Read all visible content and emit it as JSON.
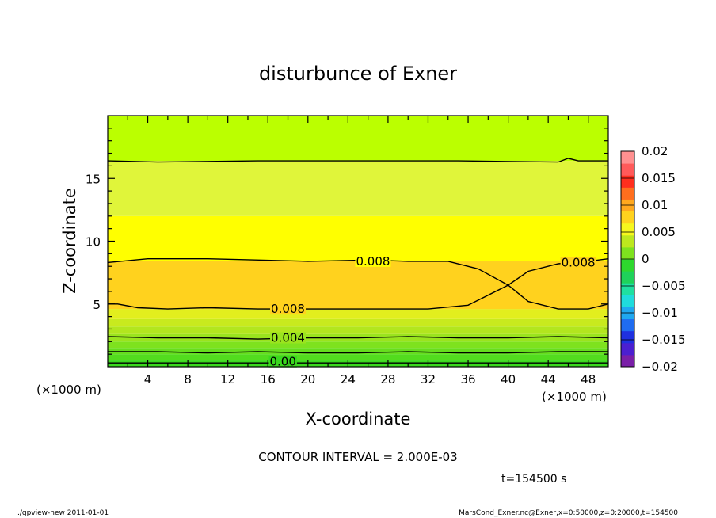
{
  "chart_data": {
    "type": "heatmap",
    "title": "disturbunce of Exner",
    "xlabel": "X-coordinate",
    "ylabel": "Z-coordinate",
    "xunits_left": "(×1000 m)",
    "xunits_right": "(×1000 m)",
    "xlim": [
      0,
      50
    ],
    "ylim": [
      0,
      20
    ],
    "xticks": [
      4,
      8,
      12,
      16,
      20,
      24,
      28,
      32,
      36,
      40,
      44,
      48
    ],
    "yticks": [
      5,
      10,
      15
    ],
    "colorbar": {
      "range": [
        -0.02,
        0.02
      ],
      "tick_values": [
        0.02,
        0.015,
        0.01,
        0.005,
        0,
        -0.005,
        -0.01,
        -0.015,
        -0.02
      ],
      "tick_labels": [
        "0.02",
        "0.015",
        "0.01",
        "0.005",
        "0",
        "−0.005",
        "−0.01",
        "−0.015",
        "−0.02"
      ],
      "colors": [
        "#7a1fa8",
        "#4b1fd0",
        "#1f30e0",
        "#1f6cf0",
        "#1fa8f0",
        "#1fdcdc",
        "#1fe0a0",
        "#1fd25a",
        "#2ed82e",
        "#7ee21e",
        "#bde81e",
        "#f7f71e",
        "#ffd21e",
        "#ffa81e",
        "#ff6e1e",
        "#ff2e1e",
        "#ff5a5a",
        "#ff9090"
      ]
    },
    "contour_interval": "CONTOUR INTERVAL = 2.000E-03",
    "contour_labels": [
      {
        "text": "0.008",
        "x": 26.5,
        "z": 8.4
      },
      {
        "text": "0.008",
        "x": 47.0,
        "z": 8.3
      },
      {
        "text": "0.008",
        "x": 18.0,
        "z": 4.6
      },
      {
        "text": "0.004",
        "x": 18.0,
        "z": 2.3
      },
      {
        "text": "0.00",
        "x": 17.5,
        "z": 0.4
      }
    ],
    "time_label": "t=154500 s",
    "bands": [
      {
        "z0": 0.0,
        "z1": 0.5,
        "color": "#3ad81e"
      },
      {
        "z0": 0.5,
        "z1": 1.0,
        "color": "#52dc1e"
      },
      {
        "z0": 1.0,
        "z1": 1.5,
        "color": "#66de1e"
      },
      {
        "z0": 1.5,
        "z1": 2.0,
        "color": "#7ee21e"
      },
      {
        "z0": 2.0,
        "z1": 2.6,
        "color": "#9ae41e"
      },
      {
        "z0": 2.6,
        "z1": 3.2,
        "color": "#b2e61e"
      },
      {
        "z0": 3.2,
        "z1": 3.8,
        "color": "#c8ea1e"
      },
      {
        "z0": 3.8,
        "z1": 4.6,
        "color": "#e2ee1e"
      },
      {
        "z0": 4.6,
        "z1": 8.4,
        "color": "#ffd21e"
      },
      {
        "z0": 8.4,
        "z1": 12.0,
        "color": "#ffff00"
      },
      {
        "z0": 12.0,
        "z1": 16.4,
        "color": "#e0f53a"
      },
      {
        "z0": 16.4,
        "z1": 20.0,
        "color": "#bbff00"
      }
    ],
    "contours": [
      {
        "name": "top",
        "points": [
          [
            0,
            16.4
          ],
          [
            5,
            16.3
          ],
          [
            15,
            16.4
          ],
          [
            25,
            16.4
          ],
          [
            35,
            16.4
          ],
          [
            45,
            16.3
          ],
          [
            46,
            16.6
          ],
          [
            47,
            16.4
          ],
          [
            50,
            16.4
          ]
        ]
      },
      {
        "name": "upper-0.008",
        "points": [
          [
            0,
            8.3
          ],
          [
            4,
            8.6
          ],
          [
            10,
            8.6
          ],
          [
            20,
            8.4
          ],
          [
            26,
            8.5
          ],
          [
            30,
            8.4
          ],
          [
            34,
            8.4
          ],
          [
            37,
            7.8
          ],
          [
            40,
            6.5
          ],
          [
            42,
            7.6
          ],
          [
            45,
            8.2
          ],
          [
            48,
            8.4
          ],
          [
            50,
            8.6
          ]
        ]
      },
      {
        "name": "lower-0.008",
        "points": [
          [
            0,
            5.0
          ],
          [
            1,
            5.0
          ],
          [
            3,
            4.7
          ],
          [
            6,
            4.6
          ],
          [
            10,
            4.7
          ],
          [
            15,
            4.6
          ],
          [
            20,
            4.6
          ],
          [
            26,
            4.6
          ],
          [
            32,
            4.6
          ],
          [
            36,
            4.9
          ],
          [
            40,
            6.5
          ],
          [
            42,
            5.2
          ],
          [
            45,
            4.6
          ],
          [
            48,
            4.6
          ],
          [
            50,
            5.0
          ]
        ]
      },
      {
        "name": "0.004",
        "points": [
          [
            0,
            2.4
          ],
          [
            5,
            2.3
          ],
          [
            10,
            2.3
          ],
          [
            15,
            2.2
          ],
          [
            20,
            2.3
          ],
          [
            25,
            2.3
          ],
          [
            30,
            2.4
          ],
          [
            35,
            2.3
          ],
          [
            40,
            2.3
          ],
          [
            45,
            2.4
          ],
          [
            50,
            2.3
          ]
        ]
      },
      {
        "name": "0.002",
        "points": [
          [
            0,
            1.2
          ],
          [
            5,
            1.2
          ],
          [
            10,
            1.1
          ],
          [
            15,
            1.2
          ],
          [
            20,
            1.1
          ],
          [
            25,
            1.1
          ],
          [
            30,
            1.2
          ],
          [
            35,
            1.1
          ],
          [
            40,
            1.1
          ],
          [
            45,
            1.2
          ],
          [
            50,
            1.2
          ]
        ]
      },
      {
        "name": "0.000",
        "points": [
          [
            0,
            0.3
          ],
          [
            10,
            0.3
          ],
          [
            20,
            0.3
          ],
          [
            30,
            0.3
          ],
          [
            40,
            0.3
          ],
          [
            50,
            0.3
          ]
        ]
      }
    ]
  },
  "footer": {
    "left": "./gpview-new   2011-01-01",
    "right": "MarsCond_Exner.nc@Exner,x=0:50000,z=0:20000,t=154500"
  }
}
